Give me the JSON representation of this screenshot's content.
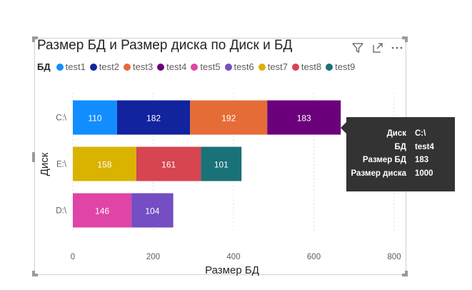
{
  "visual": {
    "title": "Размер БД и Размер диска по Диск и БД",
    "legend_title": "БД"
  },
  "header_icons": [
    "filter-icon",
    "focus-mode-icon",
    "more-options-icon"
  ],
  "chart_data": {
    "type": "bar",
    "orientation": "horizontal",
    "stacked": true,
    "title": "Размер БД и Размер диска по Диск и БД",
    "xlabel": "Размер БД",
    "ylabel": "Диск",
    "xlim": [
      0,
      800
    ],
    "xticks": [
      "0",
      "200",
      "400",
      "600",
      "800"
    ],
    "grid": true,
    "legend_position": "top-left",
    "legend_title": "БД",
    "categories": [
      "C:\\",
      "E:\\",
      "D:\\"
    ],
    "series": [
      {
        "name": "test1",
        "color": "#118DFF",
        "values": [
          110,
          null,
          null
        ]
      },
      {
        "name": "test2",
        "color": "#12239E",
        "values": [
          182,
          null,
          null
        ]
      },
      {
        "name": "test3",
        "color": "#E66C37",
        "values": [
          192,
          null,
          null
        ]
      },
      {
        "name": "test4",
        "color": "#6B007B",
        "values": [
          183,
          null,
          null
        ]
      },
      {
        "name": "test5",
        "color": "#E044A7",
        "values": [
          null,
          null,
          146
        ]
      },
      {
        "name": "test6",
        "color": "#744EC2",
        "values": [
          null,
          null,
          104
        ]
      },
      {
        "name": "test7",
        "color": "#D9B300",
        "values": [
          null,
          158,
          null
        ]
      },
      {
        "name": "test8",
        "color": "#D64550",
        "values": [
          null,
          161,
          null
        ]
      },
      {
        "name": "test9",
        "color": "#197278",
        "values": [
          null,
          101,
          null
        ]
      }
    ],
    "stack_order": [
      [
        "test1",
        "test2",
        "test3",
        "test4"
      ],
      [
        "test7",
        "test8",
        "test9"
      ],
      [
        "test5",
        "test6"
      ]
    ]
  },
  "tooltip": {
    "rows": [
      {
        "key": "Диск",
        "value": "C:\\"
      },
      {
        "key": "БД",
        "value": "test4"
      },
      {
        "key": "Размер БД",
        "value": "183"
      },
      {
        "key": "Размер диска",
        "value": "1000"
      }
    ]
  }
}
